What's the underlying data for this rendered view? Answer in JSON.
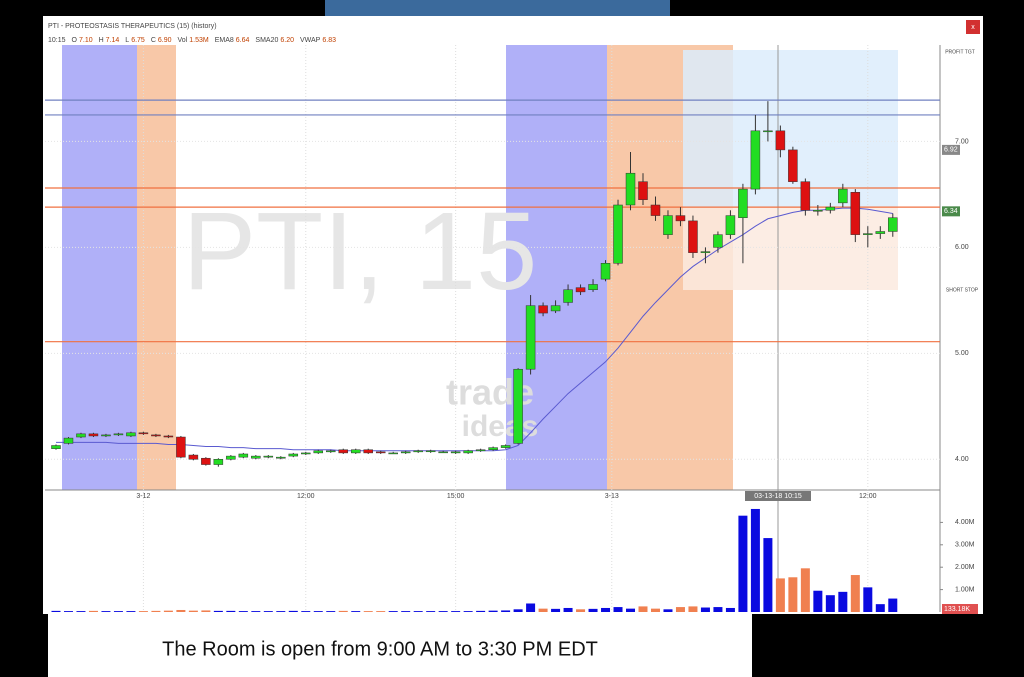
{
  "window": {
    "title": "PTI - PROTEOSTASIS THERAPEUTICS (15) (history)",
    "close": "x",
    "header": [
      {
        "label": "10:15",
        "value": ""
      },
      {
        "label": "O",
        "value": "7.10"
      },
      {
        "label": "H",
        "value": "7.14"
      },
      {
        "label": "L",
        "value": "6.75"
      },
      {
        "label": "C",
        "value": "6.90"
      },
      {
        "label": "Vol",
        "value": "1.53M"
      },
      {
        "label": "EMA8",
        "value": "6.64"
      },
      {
        "label": "SMA20",
        "value": "6.20"
      },
      {
        "label": "VWAP",
        "value": "6.83"
      }
    ],
    "watermark": "PTI, 15",
    "logo": [
      "trade",
      "ideas"
    ],
    "profit_label": "PROFIT TGT",
    "stop_label": "SHORT STOP",
    "crosshair_label": "03-13-18 10:15",
    "caption": "The Room is open from 9:00 AM to 3:30 PM EDT"
  },
  "chart_data": {
    "type": "candlestick",
    "open": [
      4.1,
      4.15,
      4.21,
      4.24,
      4.22,
      4.23,
      4.22,
      4.25,
      4.23,
      4.22,
      4.21,
      4.04,
      4.01,
      3.95,
      4.0,
      4.02,
      4.01,
      4.02,
      4.01,
      4.03,
      4.05,
      4.06,
      4.07,
      4.09,
      4.06,
      4.09,
      4.07,
      4.06,
      4.06,
      4.07,
      4.08,
      4.07,
      4.06,
      4.06,
      4.08,
      4.09,
      4.11,
      4.15,
      4.85,
      5.45,
      5.4,
      5.48,
      5.62,
      5.6,
      5.7,
      5.85,
      6.4,
      6.62,
      6.4,
      6.12,
      6.3,
      6.25,
      5.95,
      6.0,
      6.12,
      6.28,
      6.55,
      7.1,
      7.1,
      6.92,
      6.62,
      6.35,
      6.35,
      6.42,
      6.52,
      6.12,
      6.13,
      6.15
    ],
    "high": [
      4.14,
      4.21,
      4.25,
      4.25,
      4.24,
      4.25,
      4.26,
      4.26,
      4.24,
      4.23,
      4.22,
      4.05,
      4.02,
      4.01,
      4.04,
      4.06,
      4.04,
      4.04,
      4.03,
      4.06,
      4.07,
      4.09,
      4.09,
      4.1,
      4.1,
      4.1,
      4.08,
      4.07,
      4.08,
      4.09,
      4.09,
      4.08,
      4.08,
      4.09,
      4.1,
      4.12,
      4.14,
      4.86,
      5.55,
      5.48,
      5.5,
      5.65,
      5.65,
      5.7,
      5.88,
      6.45,
      6.9,
      6.7,
      6.48,
      6.35,
      6.38,
      6.3,
      6.0,
      6.15,
      6.35,
      6.6,
      7.25,
      7.38,
      7.15,
      6.95,
      6.65,
      6.4,
      6.42,
      6.6,
      6.55,
      6.2,
      6.2,
      6.32
    ],
    "low": [
      4.09,
      4.14,
      4.2,
      4.21,
      4.21,
      4.22,
      4.21,
      4.23,
      4.21,
      4.2,
      4.01,
      3.99,
      3.94,
      3.93,
      3.99,
      4.01,
      4.0,
      4.01,
      4.0,
      4.02,
      4.04,
      4.05,
      4.06,
      4.05,
      4.05,
      4.05,
      4.05,
      4.05,
      4.05,
      4.06,
      4.06,
      4.06,
      4.05,
      4.05,
      4.07,
      4.08,
      4.1,
      4.14,
      4.8,
      5.35,
      5.38,
      5.45,
      5.55,
      5.58,
      5.68,
      5.83,
      6.35,
      6.4,
      6.25,
      6.08,
      6.2,
      5.9,
      5.85,
      5.95,
      6.08,
      5.85,
      6.5,
      7.0,
      6.85,
      6.6,
      6.3,
      6.3,
      6.32,
      6.38,
      6.05,
      6.0,
      6.08,
      6.1
    ],
    "close": [
      4.13,
      4.2,
      4.24,
      4.22,
      4.23,
      4.24,
      4.25,
      4.24,
      4.22,
      4.21,
      4.02,
      4.0,
      3.95,
      4.0,
      4.03,
      4.05,
      4.03,
      4.03,
      4.02,
      4.05,
      4.06,
      4.08,
      4.08,
      4.06,
      4.09,
      4.06,
      4.06,
      4.06,
      4.07,
      4.08,
      4.08,
      4.07,
      4.07,
      4.08,
      4.09,
      4.11,
      4.13,
      4.85,
      5.45,
      5.38,
      5.45,
      5.6,
      5.58,
      5.65,
      5.85,
      6.4,
      6.7,
      6.45,
      6.3,
      6.3,
      6.25,
      5.95,
      5.96,
      6.12,
      6.3,
      6.55,
      7.1,
      7.1,
      6.92,
      6.62,
      6.35,
      6.35,
      6.38,
      6.55,
      6.12,
      6.13,
      6.15,
      6.28
    ],
    "volume": [
      0.05,
      0.04,
      0.04,
      0.05,
      0.04,
      0.04,
      0.04,
      0.04,
      0.05,
      0.06,
      0.09,
      0.06,
      0.07,
      0.05,
      0.05,
      0.04,
      0.04,
      0.04,
      0.04,
      0.05,
      0.04,
      0.04,
      0.04,
      0.05,
      0.04,
      0.04,
      0.04,
      0.04,
      0.04,
      0.04,
      0.04,
      0.04,
      0.04,
      0.04,
      0.05,
      0.06,
      0.07,
      0.12,
      0.38,
      0.15,
      0.14,
      0.18,
      0.12,
      0.14,
      0.18,
      0.22,
      0.15,
      0.25,
      0.15,
      0.12,
      0.22,
      0.25,
      0.2,
      0.22,
      0.18,
      4.3,
      4.6,
      3.3,
      1.5,
      1.55,
      1.95,
      0.95,
      0.75,
      0.9,
      1.65,
      1.1,
      0.35,
      0.6
    ],
    "sma": {
      "name": "SMA20",
      "color": "#5a5ad0",
      "values": [
        4.16,
        4.16,
        4.16,
        4.16,
        4.16,
        4.15,
        4.15,
        4.15,
        4.15,
        4.14,
        4.14,
        4.13,
        4.12,
        4.12,
        4.11,
        4.11,
        4.1,
        4.1,
        4.1,
        4.09,
        4.09,
        4.09,
        4.09,
        4.08,
        4.08,
        4.08,
        4.08,
        4.08,
        4.08,
        4.08,
        4.08,
        4.08,
        4.08,
        4.08,
        4.08,
        4.08,
        4.09,
        4.13,
        4.25,
        4.38,
        4.5,
        4.62,
        4.72,
        4.82,
        4.92,
        5.05,
        5.2,
        5.35,
        5.48,
        5.6,
        5.72,
        5.82,
        5.9,
        5.98,
        6.05,
        6.12,
        6.2,
        6.27,
        6.3,
        6.33,
        6.35,
        6.35,
        6.36,
        6.37,
        6.37,
        6.36,
        6.34,
        6.32
      ]
    },
    "up_color": "#22dd22",
    "down_color": "#dd1111",
    "volume_up_color": "#0a0ae0",
    "volume_down_color": "#f08050",
    "xlim": [
      -0.88,
      70.78
    ],
    "ylim": [
      3.71,
      7.91
    ],
    "yticks": [
      {
        "value": 4,
        "label": "4.00"
      },
      {
        "value": 5,
        "label": "5.00"
      },
      {
        "value": 6,
        "label": "6.00"
      },
      {
        "value": 7,
        "label": "7.00"
      }
    ],
    "xticks": [
      {
        "value": 7,
        "label": "3-12"
      },
      {
        "value": 20,
        "label": "12:00"
      },
      {
        "value": 32,
        "label": "15:00"
      },
      {
        "value": 44.5,
        "label": "3-13"
      },
      {
        "value": 65,
        "label": "12:00"
      }
    ],
    "levels": [
      {
        "value": 7.39,
        "color": "#7080c0"
      },
      {
        "value": 7.25,
        "color": "#7080c0"
      },
      {
        "value": 6.56,
        "color": "#f07040"
      },
      {
        "value": 6.38,
        "color": "#f07040"
      },
      {
        "value": 5.11,
        "color": "#f07040"
      }
    ],
    "price_markers": [
      {
        "value": 6.92,
        "label": "6.92"
      },
      {
        "value": 6.34,
        "label": "6.34"
      }
    ],
    "volume_ylim": [
      0,
      5
    ],
    "volume_ticks": [
      {
        "value": 1,
        "label": "1.00M"
      },
      {
        "value": 2,
        "label": "2.00M"
      },
      {
        "value": 3,
        "label": "3.00M"
      },
      {
        "value": 4,
        "label": "4.00M"
      }
    ],
    "volume_marker": "133.18K"
  }
}
